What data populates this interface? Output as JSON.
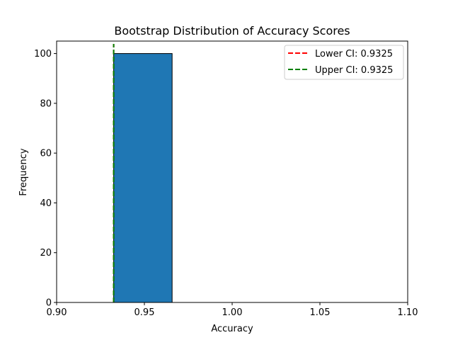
{
  "chart_data": {
    "type": "bar",
    "title": "Bootstrap Distribution of Accuracy Scores",
    "xlabel": "Accuracy",
    "ylabel": "Frequency",
    "xlim": [
      0.9,
      1.1
    ],
    "ylim": [
      0,
      105
    ],
    "x_ticks": [
      "0.90",
      "0.95",
      "1.00",
      "1.05",
      "1.10"
    ],
    "x_tick_values": [
      0.9,
      0.95,
      1.0,
      1.05,
      1.1
    ],
    "y_ticks": [
      "0",
      "20",
      "40",
      "60",
      "80",
      "100"
    ],
    "y_tick_values": [
      0,
      20,
      40,
      60,
      80,
      100
    ],
    "bins": [
      {
        "x_start": 0.9325,
        "x_end": 0.9658,
        "count": 100
      }
    ],
    "bar_color": "#1f77b4",
    "bar_edge_color": "#000000",
    "reference_lines": [
      {
        "name": "Lower CI: 0.9325",
        "x": 0.9325,
        "color": "#ff0000",
        "style": "dashed"
      },
      {
        "name": "Upper CI: 0.9325",
        "x": 0.9325,
        "color": "#008000",
        "style": "dashed"
      }
    ],
    "legend_position": "top-right",
    "grid": false
  }
}
